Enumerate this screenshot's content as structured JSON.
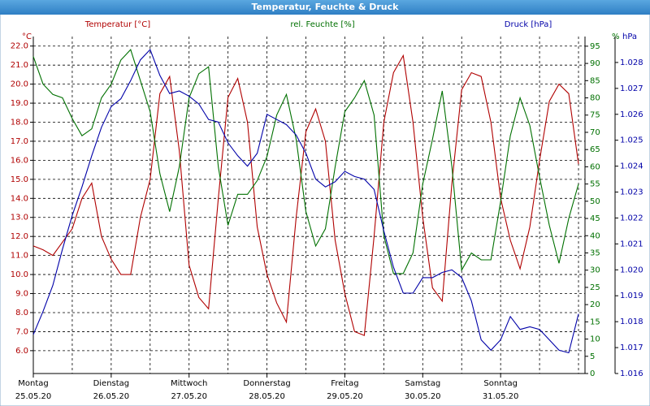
{
  "chart_data": {
    "type": "line",
    "title": "Temperatur, Feuchte & Druck",
    "ylabel": "°C",
    "y2label": "%",
    "y3label": "hPa",
    "x": [
      0,
      3,
      6,
      9,
      12,
      15,
      18,
      21,
      24,
      27,
      30,
      33,
      36,
      39,
      42,
      45,
      48,
      51,
      54,
      57,
      60,
      63,
      66,
      69,
      72,
      75,
      78,
      81,
      84,
      87,
      90,
      93,
      96,
      99,
      102,
      105,
      108,
      111,
      114,
      117,
      120,
      123,
      126,
      129,
      132,
      135,
      138,
      141,
      144,
      147,
      150,
      153,
      156,
      159,
      162,
      165,
      168
    ],
    "xlim": [
      0,
      170
    ],
    "xticks": [
      {
        "value": 0,
        "label": "Montag"
      },
      {
        "value": 24,
        "label": "Dienstag"
      },
      {
        "value": 48,
        "label": "Mittwoch"
      },
      {
        "value": 72,
        "label": "Donnerstag"
      },
      {
        "value": 96,
        "label": "Freitag"
      },
      {
        "value": 120,
        "label": "Samstag"
      },
      {
        "value": 144,
        "label": "Sonntag"
      }
    ],
    "xtick_dates": [
      "25.05.20",
      "26.05.20",
      "27.05.20",
      "28.05.20",
      "29.05.20",
      "30.05.20",
      "31.05.20"
    ],
    "xgrid": [
      12,
      24,
      36,
      48,
      60,
      72,
      84,
      96,
      108,
      120,
      132,
      144,
      156,
      168
    ],
    "ylim": [
      4.8,
      22.5
    ],
    "yticks": [
      {
        "value": 6,
        "label": "6.0"
      },
      {
        "value": 7,
        "label": "7.0"
      },
      {
        "value": 8,
        "label": "8.0"
      },
      {
        "value": 9,
        "label": "9.0"
      },
      {
        "value": 10,
        "label": "10.0"
      },
      {
        "value": 11,
        "label": "11.0"
      },
      {
        "value": 12,
        "label": "12.0"
      },
      {
        "value": 13,
        "label": "13.0"
      },
      {
        "value": 14,
        "label": "14.0"
      },
      {
        "value": 15,
        "label": "15.0"
      },
      {
        "value": 16,
        "label": "16.0"
      },
      {
        "value": 17,
        "label": "17.0"
      },
      {
        "value": 18,
        "label": "18.0"
      },
      {
        "value": 19,
        "label": "19.0"
      },
      {
        "value": 20,
        "label": "20.0"
      },
      {
        "value": 21,
        "label": "21.0"
      },
      {
        "value": 22,
        "label": "22.0"
      }
    ],
    "y2lim": [
      0,
      97.8
    ],
    "y2ticks": [
      0,
      5,
      10,
      15,
      20,
      25,
      30,
      35,
      40,
      45,
      50,
      55,
      60,
      65,
      70,
      75,
      80,
      85,
      90,
      95
    ],
    "y3lim": [
      1.016,
      1.029
    ],
    "y3ticks": [
      1.016,
      1.017,
      1.018,
      1.019,
      {
        "value": 1.02,
        "label": "1.020"
      },
      1.021,
      1.022,
      1.023,
      1.024,
      1.025,
      1.026,
      1.027,
      1.028
    ],
    "grid": true,
    "series": [
      {
        "name": "Temperatur [°C]",
        "color": "#b00000",
        "axis": "y",
        "values": [
          11.5,
          11.3,
          11.0,
          11.7,
          12.4,
          14.0,
          14.8,
          12.0,
          10.8,
          10.0,
          10.0,
          13.0,
          15.0,
          19.5,
          20.4,
          16.5,
          10.5,
          8.8,
          8.2,
          14.0,
          19.3,
          20.3,
          18.0,
          12.5,
          10.0,
          8.5,
          7.5,
          13.0,
          17.5,
          18.7,
          17.0,
          11.8,
          9.0,
          7.0,
          6.8,
          12.0,
          18.0,
          20.6,
          21.5,
          18.0,
          13.0,
          9.3,
          8.6,
          14.8,
          19.7,
          20.6,
          20.4,
          18.0,
          14.0,
          11.8,
          10.3,
          12.5,
          16.0,
          19.1,
          20.0,
          19.5,
          15.8
        ]
      },
      {
        "name": "rel. Feuchte [%]",
        "color": "#007000",
        "axis": "y2",
        "values": [
          92,
          84,
          81,
          80,
          74,
          69,
          71,
          80,
          84,
          91,
          94,
          85,
          76,
          58,
          47,
          60,
          80,
          87,
          89,
          60,
          43,
          52,
          52,
          56,
          63,
          75,
          81,
          68,
          47,
          37,
          42,
          60,
          76,
          80,
          85,
          75,
          40,
          29,
          29,
          35,
          55,
          68,
          82,
          60,
          30,
          35,
          33,
          33,
          50,
          69,
          80,
          72,
          57,
          43,
          32,
          45,
          55
        ]
      },
      {
        "name": "Druck [hPa]",
        "color": "#0000a8",
        "axis": "y3",
        "values": [
          1.0175,
          1.0184,
          1.0194,
          1.0208,
          1.0221,
          1.0232,
          1.0244,
          1.0255,
          1.0263,
          1.0266,
          1.0273,
          1.0281,
          1.0285,
          1.0275,
          1.0268,
          1.0269,
          1.0267,
          1.0264,
          1.0258,
          1.0257,
          1.0249,
          1.0244,
          1.024,
          1.0245,
          1.026,
          1.0258,
          1.0256,
          1.0252,
          1.0245,
          1.0235,
          1.0232,
          1.0234,
          1.0238,
          1.0236,
          1.0235,
          1.0231,
          1.0215,
          1.0201,
          1.0191,
          1.0191,
          1.0197,
          1.0197,
          1.0199,
          1.02,
          1.0197,
          1.0188,
          1.0173,
          1.0169,
          1.0173,
          1.0182,
          1.0177,
          1.0178,
          1.0177,
          1.0173,
          1.0169,
          1.0168,
          1.0183
        ]
      }
    ]
  }
}
